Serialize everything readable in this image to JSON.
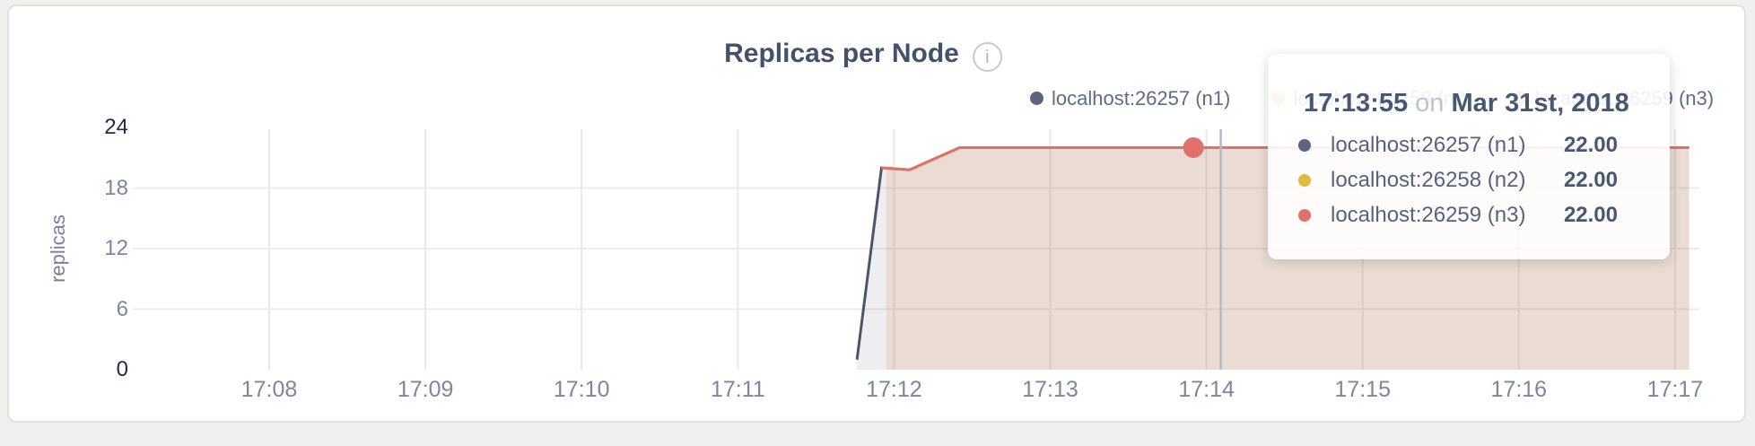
{
  "page": {
    "background": "#f0f0ef"
  },
  "chart": {
    "title": "Replicas per Node",
    "info_icon_glyph": "i",
    "ylabel": "replicas",
    "legend": [
      {
        "label": "localhost:26257 (n1)",
        "color": "#5b6580"
      },
      {
        "label": "localhost:26258 (n2)",
        "color": "#e2b844"
      },
      {
        "label": "localhost:26259 (n3)",
        "color": "#e0716a"
      }
    ]
  },
  "tooltip": {
    "time": "17:13:55",
    "connector": "on",
    "date": "Mar 31st, 2018",
    "rows": [
      {
        "label": "localhost:26257 (n1)",
        "value": "22.00",
        "color": "#5b6580"
      },
      {
        "label": "localhost:26258 (n2)",
        "value": "22.00",
        "color": "#e2b844"
      },
      {
        "label": "localhost:26259 (n3)",
        "value": "22.00",
        "color": "#e0716a"
      }
    ]
  },
  "chart_data": {
    "type": "area",
    "title": "Replicas per Node",
    "xlabel": "",
    "ylabel": "replicas",
    "x_ticks": [
      "17:08",
      "17:09",
      "17:10",
      "17:11",
      "17:12",
      "17:13",
      "17:14",
      "17:15",
      "17:16",
      "17:17"
    ],
    "x_tick_minutes": [
      8,
      9,
      10,
      11,
      12,
      13,
      14,
      15,
      16,
      17
    ],
    "y_ticks": [
      0,
      6,
      12,
      18,
      24
    ],
    "grid_y_values": [
      6,
      12,
      18
    ],
    "ylim": [
      0,
      24
    ],
    "xlim_minutes": [
      7.13,
      17.09
    ],
    "fill_opacity": 0.1,
    "series": [
      {
        "name": "localhost:26257 (n1)",
        "color": "#4d5669",
        "line": [
          [
            11.763,
            1
          ],
          [
            11.92,
            20
          ],
          [
            12.1,
            19.8
          ],
          [
            12.42,
            22
          ],
          [
            17.09,
            22
          ]
        ],
        "fill": [
          [
            11.763,
            1
          ],
          [
            11.92,
            20
          ],
          [
            12.1,
            19.8
          ],
          [
            12.42,
            22
          ],
          [
            17.09,
            22
          ]
        ]
      },
      {
        "name": "localhost:26258 (n2)",
        "color": "#e2b844",
        "line": [
          [
            11.92,
            20
          ],
          [
            12.1,
            19.8
          ],
          [
            12.42,
            22
          ],
          [
            17.09,
            22
          ]
        ],
        "fill": [
          [
            11.951,
            19.87
          ],
          [
            12.1,
            19.8
          ],
          [
            12.42,
            22
          ],
          [
            17.09,
            22
          ]
        ]
      },
      {
        "name": "localhost:26259 (n3)",
        "color": "#e0716a",
        "line": [
          [
            11.92,
            20
          ],
          [
            12.1,
            19.8
          ],
          [
            12.42,
            22
          ],
          [
            17.09,
            22
          ]
        ],
        "fill": [
          [
            11.951,
            19.87
          ],
          [
            12.1,
            19.8
          ],
          [
            12.42,
            22
          ],
          [
            17.09,
            22
          ]
        ]
      }
    ],
    "hover": {
      "time_label": "17:13:55",
      "point_minute": 13.917,
      "point_value": 22,
      "point_series": "localhost:26259 (n3)",
      "point_color": "#e0716a",
      "crosshair_minute": 14.092,
      "values": {
        "localhost:26257 (n1)": 22.0,
        "localhost:26258 (n2)": 22.0,
        "localhost:26259 (n3)": 22.0
      }
    }
  }
}
